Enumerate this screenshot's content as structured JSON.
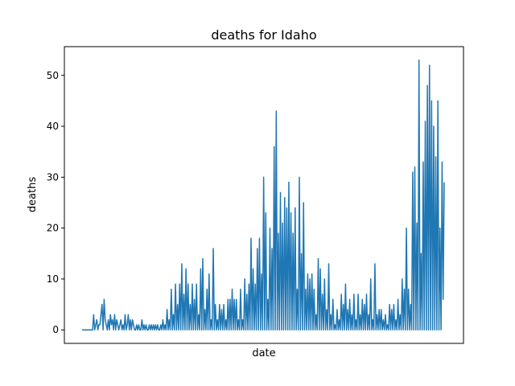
{
  "chart_data": {
    "type": "line",
    "title": "deaths for Idaho",
    "xlabel": "date",
    "ylabel": "deaths",
    "ylim": [
      -2.65,
      55.65
    ],
    "yticks": [
      0,
      10,
      20,
      30,
      40,
      50
    ],
    "grid": false,
    "legend": null,
    "series": [
      {
        "color": "#1f77b4",
        "values": [
          0,
          0,
          0,
          0,
          0,
          0,
          0,
          0,
          0,
          0,
          0,
          3,
          0,
          1,
          2,
          0,
          1,
          1,
          3,
          5,
          0,
          6,
          2,
          1,
          0,
          2,
          0,
          3,
          1,
          2,
          0,
          3,
          0,
          2,
          1,
          0,
          1,
          2,
          0,
          1,
          0,
          3,
          0,
          1,
          3,
          0,
          2,
          0,
          2,
          1,
          0,
          0,
          1,
          0,
          1,
          0,
          0,
          2,
          0,
          1,
          0,
          1,
          0,
          0,
          1,
          0,
          1,
          0,
          1,
          0,
          1,
          0,
          1,
          0,
          0,
          1,
          0,
          2,
          0,
          1,
          0,
          4,
          0,
          2,
          0,
          8,
          0,
          3,
          0,
          9,
          0,
          5,
          0,
          9,
          0,
          13,
          0,
          7,
          0,
          12,
          0,
          9,
          0,
          5,
          0,
          9,
          0,
          6,
          0,
          9,
          0,
          3,
          0,
          12,
          0,
          14,
          0,
          4,
          0,
          8,
          0,
          11,
          0,
          2,
          0,
          16,
          0,
          5,
          0,
          2,
          0,
          5,
          0,
          4,
          0,
          5,
          0,
          2,
          0,
          6,
          0,
          6,
          0,
          8,
          0,
          6,
          0,
          6,
          0,
          2,
          0,
          8,
          0,
          2,
          0,
          10,
          0,
          7,
          0,
          9,
          0,
          18,
          0,
          12,
          0,
          9,
          0,
          16,
          0,
          18,
          0,
          11,
          0,
          30,
          0,
          23,
          0,
          6,
          0,
          20,
          0,
          16,
          0,
          36,
          0,
          43,
          0,
          19,
          0,
          27,
          0,
          21,
          0,
          26,
          0,
          24,
          0,
          29,
          0,
          23,
          0,
          19,
          0,
          24,
          0,
          8,
          0,
          30,
          0,
          15,
          0,
          25,
          0,
          8,
          0,
          11,
          0,
          10,
          0,
          11,
          0,
          8,
          0,
          3,
          0,
          14,
          0,
          12,
          0,
          7,
          0,
          10,
          0,
          4,
          0,
          13,
          0,
          3,
          0,
          6,
          0,
          1,
          0,
          4,
          0,
          2,
          0,
          7,
          0,
          5,
          0,
          9,
          0,
          4,
          0,
          6,
          0,
          3,
          0,
          7,
          0,
          2,
          0,
          7,
          0,
          3,
          0,
          6,
          0,
          5,
          0,
          7,
          0,
          3,
          0,
          10,
          0,
          2,
          0,
          13,
          0,
          3,
          0,
          4,
          0,
          4,
          0,
          2,
          0,
          3,
          0,
          1,
          0,
          5,
          0,
          4,
          0,
          5,
          0,
          2,
          0,
          6,
          0,
          3,
          0,
          10,
          0,
          8,
          0,
          20,
          0,
          8,
          0,
          5,
          0,
          31,
          0,
          32,
          0,
          21,
          0,
          53,
          0,
          15,
          0,
          33,
          0,
          41,
          0,
          48,
          0,
          52,
          0,
          45,
          0,
          40,
          0,
          34,
          0,
          45,
          0,
          20,
          0,
          33,
          6,
          29
        ]
      }
    ]
  }
}
